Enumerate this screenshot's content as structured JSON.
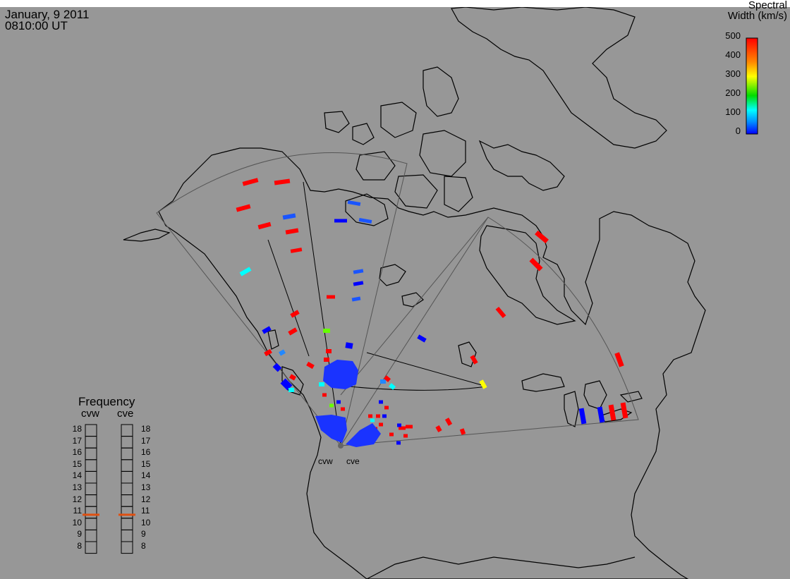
{
  "header": {
    "date": "January, 9 2011",
    "time": "0810:00 UT"
  },
  "colorbar": {
    "title_line1": "Spectral",
    "title_line2": "Width (km/s)",
    "ticks": [
      "500",
      "400",
      "300",
      "200",
      "100",
      "0"
    ],
    "min": 0,
    "max": 500,
    "colors": [
      "#ff0000",
      "#ff8800",
      "#ffff00",
      "#00dd00",
      "#00ffff",
      "#0088ff",
      "#0000ff"
    ]
  },
  "frequency_panel": {
    "title": "Frequency",
    "radar_left": "cvw",
    "radar_right": "cve",
    "levels": [
      "18",
      "17",
      "16",
      "15",
      "14",
      "13",
      "12",
      "11",
      "10",
      "9",
      "8"
    ],
    "cvw_value": 10.8,
    "cve_value": 10.8,
    "marker_color": "#e05010"
  },
  "radar_sites": [
    {
      "name": "cvw"
    },
    {
      "name": "cve"
    }
  ],
  "colors": {
    "background": "#979797",
    "coastline": "#000000",
    "fov_outline": "#555555"
  }
}
